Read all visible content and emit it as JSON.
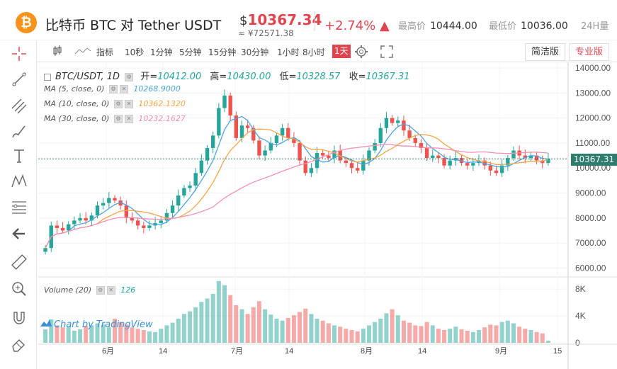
{
  "header": {
    "coin_symbol": "₿",
    "pair_label": "比特币 BTC 对 Tether USDT",
    "price_currency": "$",
    "price": "10367.34",
    "price_cny": "≈ ¥72571.38",
    "change": "+2.74% ▲",
    "high_label": "最高价",
    "high_value": "10444.00",
    "low_label": "最低价",
    "low_value": "10036.00",
    "vol_label": "24H量"
  },
  "toolbar": {
    "indicator_label": "指标",
    "intervals": [
      "10秒",
      "1分钟",
      "5分钟",
      "15分钟",
      "30分钟",
      "1小时",
      "8小时",
      "1天"
    ],
    "active_interval": "1天",
    "simple_btn": "简洁版",
    "pro_btn": "专业版"
  },
  "legend": {
    "symbol": "BTC/USDT, 1D",
    "open_label": "开=",
    "open": "10412.00",
    "high_label": "高=",
    "high": "10430.00",
    "low_label": "低=",
    "low": "10328.57",
    "close_label": "收=",
    "close": "10367.31",
    "ma5": "MA (5, close, 0)",
    "ma5_val": "10268.9000",
    "ma10": "MA (10, close, 0)",
    "ma10_val": "10362.1320",
    "ma30": "MA (30, close, 0)",
    "ma30_val": "10232.1627",
    "volume": "Volume (20)",
    "volume_val": "126"
  },
  "last_price_tag": "10367.31",
  "watermark": "Chart by TradingView",
  "colors": {
    "up": "#26a69a",
    "down": "#ef5350",
    "ma5": "#4fa3e0",
    "ma10": "#f5a54a",
    "ma30": "#f48fb1",
    "accent": "#e0454f"
  },
  "chart_data": {
    "type": "candlestick",
    "price_axis": [
      "14000.00",
      "13000.00",
      "12000.00",
      "11000.00",
      "10000.00",
      "9000.00",
      "8000.00",
      "7000.00",
      "6000.00"
    ],
    "volume_axis": [
      "8K",
      "4K",
      "0"
    ],
    "time_axis": [
      "6月",
      "14",
      "7月",
      "14",
      "8月",
      "14",
      "9月",
      "15"
    ],
    "ylim": [
      5700,
      14200
    ],
    "closes": [
      6800,
      7700,
      7600,
      7500,
      7750,
      7900,
      8000,
      7900,
      8100,
      8500,
      8600,
      8800,
      8700,
      8500,
      8000,
      7900,
      7700,
      7600,
      7700,
      7800,
      7900,
      8200,
      8500,
      8900,
      9200,
      9300,
      9800,
      10300,
      10800,
      11300,
      12400,
      12900,
      12100,
      11200,
      11700,
      11600,
      11100,
      10500,
      10700,
      11000,
      11300,
      11600,
      11200,
      11000,
      10300,
      9800,
      10000,
      10600,
      10500,
      10400,
      10700,
      10300,
      10200,
      10000,
      9900,
      10300,
      10700,
      11000,
      11600,
      12000,
      11800,
      11900,
      11500,
      11200,
      11000,
      10800,
      10400,
      10500,
      10400,
      10100,
      10300,
      10400,
      10200,
      10100,
      10200,
      10300,
      10100,
      9900,
      9800,
      10100,
      10400,
      10700,
      10500,
      10400,
      10500,
      10300,
      10200,
      10367
    ],
    "volumes": [
      2000,
      3500,
      2600,
      2300,
      2400,
      1800,
      2000,
      2500,
      2600,
      2900,
      2700,
      2300,
      3600,
      3100,
      2700,
      2300,
      2100,
      1900,
      1700,
      1600,
      2100,
      2600,
      3000,
      3600,
      4300,
      4700,
      5300,
      6100,
      6600,
      7300,
      9200,
      8600,
      7100,
      5600,
      5000,
      4300,
      5300,
      6200,
      5000,
      4200,
      3600,
      3300,
      3700,
      4100,
      4600,
      5100,
      4300,
      3600,
      3300,
      2900,
      2600,
      2400,
      2100,
      1900,
      1700,
      2100,
      2600,
      3100,
      3600,
      4400,
      5000,
      4100,
      3300,
      3000,
      2600,
      2500,
      3100,
      2600,
      2100,
      1900,
      2100,
      2400,
      2000,
      1800,
      1600,
      1900,
      2300,
      2700,
      2600,
      3100,
      3300,
      2900,
      2400,
      2100,
      1900,
      1600,
      1400,
      300
    ],
    "ma_series": [
      {
        "name": "MA (5, close, 0)",
        "color": "#4fa3e0",
        "period": 5
      },
      {
        "name": "MA (10, close, 0)",
        "color": "#f5a54a",
        "period": 10
      },
      {
        "name": "MA (30, close, 0)",
        "color": "#f48fb1",
        "period": 30
      }
    ]
  }
}
